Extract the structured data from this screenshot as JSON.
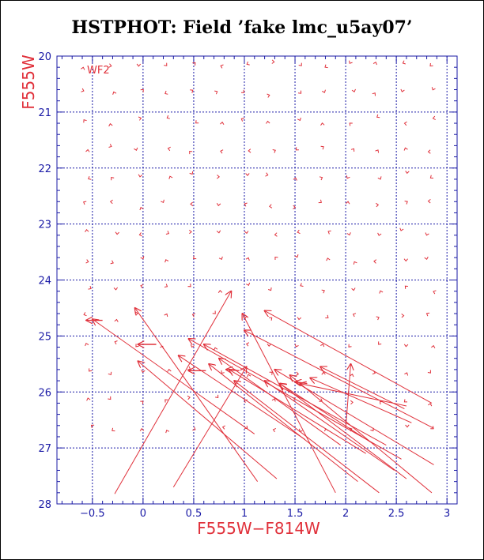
{
  "title": "HSTPHOT: Field ’fake lmc_u5ay07’",
  "colors": {
    "axis": "#1a1aa6",
    "data": "#e0303a",
    "frame": "#000000"
  },
  "chart_data": {
    "type": "vector-field",
    "panel_label": "WF2",
    "xlabel": "F555W−F814W",
    "ylabel": "F555W",
    "xlim": [
      -0.85,
      3.1
    ],
    "ylim": [
      20,
      28
    ],
    "y_inverted": true,
    "grid": true,
    "xticks": [
      -0.5,
      0,
      0.5,
      1,
      1.5,
      2,
      2.5,
      3
    ],
    "xtick_labels": [
      "−0.5",
      "0",
      "0.5",
      "1",
      "1.5",
      "2",
      "2.5",
      "3"
    ],
    "yticks": [
      20,
      21,
      22,
      23,
      24,
      25,
      26,
      27,
      28
    ],
    "ytick_labels": [
      "20",
      "21",
      "22",
      "23",
      "24",
      "25",
      "26",
      "27",
      "28"
    ],
    "long_vectors": [
      {
        "x0": -0.28,
        "y0": 27.82,
        "x1": 0.87,
        "y1": 24.2
      },
      {
        "x0": 0.3,
        "y0": 27.7,
        "x1": 1.02,
        "y1": 25.55
      },
      {
        "x0": 1.9,
        "y0": 27.8,
        "x1": 0.98,
        "y1": 24.6
      },
      {
        "x0": 1.13,
        "y0": 27.6,
        "x1": -0.08,
        "y1": 24.5
      },
      {
        "x0": 1.32,
        "y0": 27.55,
        "x1": -0.05,
        "y1": 25.45
      },
      {
        "x0": 2.85,
        "y0": 26.2,
        "x1": 1.2,
        "y1": 24.55
      },
      {
        "x0": 2.87,
        "y0": 26.65,
        "x1": 1.0,
        "y1": 24.9
      },
      {
        "x0": 2.87,
        "y0": 27.3,
        "x1": 1.3,
        "y1": 25.6
      },
      {
        "x0": 2.85,
        "y0": 27.8,
        "x1": 1.45,
        "y1": 25.7
      },
      {
        "x0": 2.65,
        "y0": 26.55,
        "x1": 1.65,
        "y1": 25.75
      },
      {
        "x0": 2.6,
        "y0": 26.25,
        "x1": 1.55,
        "y1": 25.85
      },
      {
        "x0": 2.48,
        "y0": 27.4,
        "x1": 1.2,
        "y1": 25.8
      },
      {
        "x0": 2.6,
        "y0": 27.55,
        "x1": 1.35,
        "y1": 25.85
      },
      {
        "x0": 2.33,
        "y0": 27.8,
        "x1": 0.9,
        "y1": 25.8
      },
      {
        "x0": 2.12,
        "y0": 27.6,
        "x1": 0.65,
        "y1": 25.5
      },
      {
        "x0": 2.4,
        "y0": 26.95,
        "x1": 0.6,
        "y1": 25.15
      },
      {
        "x0": 1.6,
        "y0": 26.85,
        "x1": 0.35,
        "y1": 25.35
      },
      {
        "x0": 1.95,
        "y0": 26.95,
        "x1": 0.75,
        "y1": 25.4
      },
      {
        "x0": 2.2,
        "y0": 27.1,
        "x1": 0.85,
        "y1": 25.6
      },
      {
        "x0": 2.55,
        "y0": 27.2,
        "x1": 0.45,
        "y1": 25.05
      },
      {
        "x0": 2.25,
        "y0": 26.9,
        "x1": 1.35,
        "y1": 25.85
      },
      {
        "x0": 2.0,
        "y0": 26.65,
        "x1": 2.05,
        "y1": 25.5
      },
      {
        "x0": 1.1,
        "y0": 26.75,
        "x1": -0.5,
        "y1": 24.7
      },
      {
        "x0": 2.58,
        "y0": 26.3,
        "x1": 1.75,
        "y1": 25.55
      }
    ],
    "small_vectors": [
      {
        "x0": -0.4,
        "y0": 24.72,
        "x1": -0.56,
        "y1": 24.72
      },
      {
        "x0": 0.13,
        "y0": 25.15,
        "x1": -0.05,
        "y1": 25.15
      },
      {
        "x0": 0.62,
        "y0": 25.62,
        "x1": 0.45,
        "y1": 25.62
      },
      {
        "x0": 0.95,
        "y0": 25.62,
        "x1": 0.82,
        "y1": 25.6
      },
      {
        "x0": 1.62,
        "y0": 25.85,
        "x1": 1.5,
        "y1": 25.82
      }
    ]
  }
}
